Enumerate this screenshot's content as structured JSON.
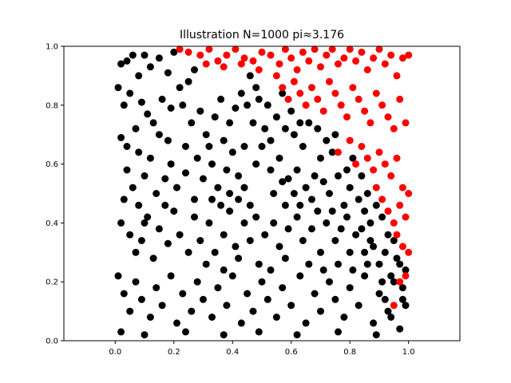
{
  "chart_data": {
    "type": "scatter",
    "title": "Illustration N=1000 pi≈3.176",
    "xlabel": "",
    "ylabel": "",
    "xlim": [
      -0.175,
      1.175
    ],
    "ylim": [
      0.0,
      1.0
    ],
    "x_ticks": [
      "0.0",
      "0.2",
      "0.4",
      "0.6",
      "0.8",
      "1.0"
    ],
    "y_ticks": [
      "0.0",
      "0.2",
      "0.4",
      "0.6",
      "0.8",
      "1.0"
    ],
    "grid": false,
    "legend": "none",
    "n_points": 1000,
    "colors": {
      "inside": "#000000",
      "outside": "#ff0000"
    },
    "series": [
      {
        "points": [
          [
            0.02,
            0.94
          ],
          [
            0.04,
            0.95
          ],
          [
            0.06,
            0.97
          ],
          [
            0.01,
            0.86
          ],
          [
            0.03,
            0.8
          ],
          [
            0.05,
            0.84
          ],
          [
            0.08,
            0.9
          ],
          [
            0.1,
            0.97
          ],
          [
            0.12,
            0.93
          ],
          [
            0.15,
            0.96
          ],
          [
            0.18,
            0.91
          ],
          [
            0.2,
            0.98
          ],
          [
            0.09,
            0.81
          ],
          [
            0.11,
            0.77
          ],
          [
            0.07,
            0.72
          ],
          [
            0.02,
            0.69
          ],
          [
            0.04,
            0.66
          ],
          [
            0.13,
            0.74
          ],
          [
            0.16,
            0.82
          ],
          [
            0.19,
            0.79
          ],
          [
            0.22,
            0.86
          ],
          [
            0.25,
            0.88
          ],
          [
            0.27,
            0.92
          ],
          [
            0.23,
            0.8
          ],
          [
            0.26,
            0.74
          ],
          [
            0.29,
            0.78
          ],
          [
            0.31,
            0.7
          ],
          [
            0.34,
            0.76
          ],
          [
            0.36,
            0.82
          ],
          [
            0.39,
            0.74
          ],
          [
            0.41,
            0.79
          ],
          [
            0.43,
            0.84
          ],
          [
            0.45,
            0.8
          ],
          [
            0.47,
            0.74
          ],
          [
            0.49,
            0.82
          ],
          [
            0.52,
            0.8
          ],
          [
            0.55,
            0.76
          ],
          [
            0.58,
            0.72
          ],
          [
            0.61,
            0.7
          ],
          [
            0.64,
            0.66
          ],
          [
            0.66,
            0.74
          ],
          [
            0.7,
            0.62
          ],
          [
            0.72,
            0.68
          ],
          [
            0.74,
            0.64
          ],
          [
            0.68,
            0.56
          ],
          [
            0.04,
            0.58
          ],
          [
            0.06,
            0.52
          ],
          [
            0.08,
            0.46
          ],
          [
            0.1,
            0.56
          ],
          [
            0.12,
            0.62
          ],
          [
            0.14,
            0.5
          ],
          [
            0.17,
            0.55
          ],
          [
            0.19,
            0.6
          ],
          [
            0.21,
            0.52
          ],
          [
            0.24,
            0.57
          ],
          [
            0.28,
            0.62
          ],
          [
            0.3,
            0.55
          ],
          [
            0.33,
            0.6
          ],
          [
            0.35,
            0.52
          ],
          [
            0.38,
            0.58
          ],
          [
            0.4,
            0.64
          ],
          [
            0.42,
            0.56
          ],
          [
            0.44,
            0.52
          ],
          [
            0.48,
            0.6
          ],
          [
            0.5,
            0.66
          ],
          [
            0.53,
            0.58
          ],
          [
            0.56,
            0.62
          ],
          [
            0.59,
            0.55
          ],
          [
            0.62,
            0.58
          ],
          [
            0.65,
            0.52
          ],
          [
            0.67,
            0.48
          ],
          [
            0.71,
            0.54
          ],
          [
            0.73,
            0.5
          ],
          [
            0.76,
            0.56
          ],
          [
            0.78,
            0.46
          ],
          [
            0.8,
            0.52
          ],
          [
            0.83,
            0.48
          ],
          [
            0.85,
            0.44
          ],
          [
            0.87,
            0.4
          ],
          [
            0.02,
            0.4
          ],
          [
            0.05,
            0.36
          ],
          [
            0.07,
            0.3
          ],
          [
            0.09,
            0.34
          ],
          [
            0.11,
            0.42
          ],
          [
            0.13,
            0.28
          ],
          [
            0.15,
            0.38
          ],
          [
            0.18,
            0.33
          ],
          [
            0.2,
            0.44
          ],
          [
            0.22,
            0.36
          ],
          [
            0.25,
            0.3
          ],
          [
            0.27,
            0.42
          ],
          [
            0.29,
            0.34
          ],
          [
            0.32,
            0.4
          ],
          [
            0.34,
            0.3
          ],
          [
            0.37,
            0.36
          ],
          [
            0.39,
            0.44
          ],
          [
            0.41,
            0.32
          ],
          [
            0.44,
            0.4
          ],
          [
            0.46,
            0.34
          ],
          [
            0.48,
            0.42
          ],
          [
            0.51,
            0.36
          ],
          [
            0.54,
            0.4
          ],
          [
            0.56,
            0.32
          ],
          [
            0.59,
            0.38
          ],
          [
            0.62,
            0.42
          ],
          [
            0.64,
            0.34
          ],
          [
            0.67,
            0.38
          ],
          [
            0.7,
            0.3
          ],
          [
            0.72,
            0.4
          ],
          [
            0.75,
            0.34
          ],
          [
            0.77,
            0.38
          ],
          [
            0.8,
            0.3
          ],
          [
            0.82,
            0.36
          ],
          [
            0.85,
            0.3
          ],
          [
            0.88,
            0.32
          ],
          [
            0.9,
            0.26
          ],
          [
            0.92,
            0.3
          ],
          [
            0.94,
            0.22
          ],
          [
            0.96,
            0.28
          ],
          [
            0.98,
            0.18
          ],
          [
            0.01,
            0.22
          ],
          [
            0.03,
            0.16
          ],
          [
            0.05,
            0.1
          ],
          [
            0.07,
            0.2
          ],
          [
            0.09,
            0.14
          ],
          [
            0.12,
            0.08
          ],
          [
            0.14,
            0.18
          ],
          [
            0.16,
            0.12
          ],
          [
            0.19,
            0.22
          ],
          [
            0.21,
            0.06
          ],
          [
            0.23,
            0.16
          ],
          [
            0.26,
            0.1
          ],
          [
            0.28,
            0.2
          ],
          [
            0.3,
            0.14
          ],
          [
            0.33,
            0.08
          ],
          [
            0.35,
            0.18
          ],
          [
            0.38,
            0.12
          ],
          [
            0.4,
            0.22
          ],
          [
            0.43,
            0.06
          ],
          [
            0.45,
            0.16
          ],
          [
            0.47,
            0.1
          ],
          [
            0.5,
            0.2
          ],
          [
            0.52,
            0.14
          ],
          [
            0.55,
            0.08
          ],
          [
            0.57,
            0.18
          ],
          [
            0.6,
            0.12
          ],
          [
            0.63,
            0.22
          ],
          [
            0.65,
            0.06
          ],
          [
            0.68,
            0.16
          ],
          [
            0.7,
            0.1
          ],
          [
            0.73,
            0.2
          ],
          [
            0.75,
            0.14
          ],
          [
            0.78,
            0.08
          ],
          [
            0.8,
            0.18
          ],
          [
            0.83,
            0.12
          ],
          [
            0.85,
            0.22
          ],
          [
            0.88,
            0.06
          ],
          [
            0.9,
            0.16
          ],
          [
            0.93,
            0.1
          ],
          [
            0.95,
            0.2
          ],
          [
            0.97,
            0.04
          ],
          [
            0.99,
            0.12
          ],
          [
            0.02,
            0.03
          ],
          [
            0.1,
            0.02
          ],
          [
            0.24,
            0.03
          ],
          [
            0.37,
            0.02
          ],
          [
            0.49,
            0.03
          ],
          [
            0.62,
            0.02
          ],
          [
            0.76,
            0.03
          ],
          [
            0.89,
            0.02
          ],
          [
            0.46,
            0.9
          ],
          [
            0.48,
            0.86
          ],
          [
            0.51,
            0.72
          ],
          [
            0.53,
            0.68
          ],
          [
            0.57,
            0.84
          ],
          [
            0.6,
            0.78
          ],
          [
            0.63,
            0.74
          ],
          [
            0.69,
            0.72
          ],
          [
            0.75,
            0.7
          ],
          [
            0.79,
            0.58
          ],
          [
            0.81,
            0.62
          ],
          [
            0.84,
            0.56
          ],
          [
            0.86,
            0.5
          ],
          [
            0.89,
            0.46
          ],
          [
            0.91,
            0.42
          ],
          [
            0.93,
            0.36
          ],
          [
            0.95,
            0.34
          ],
          [
            0.97,
            0.26
          ],
          [
            0.99,
            0.24
          ],
          [
            0.98,
            0.14
          ],
          [
            0.36,
            0.46
          ],
          [
            0.42,
            0.48
          ],
          [
            0.58,
            0.46
          ],
          [
            0.61,
            0.5
          ],
          [
            0.69,
            0.44
          ],
          [
            0.31,
            0.26
          ],
          [
            0.37,
            0.24
          ],
          [
            0.42,
            0.28
          ],
          [
            0.49,
            0.26
          ],
          [
            0.53,
            0.24
          ],
          [
            0.58,
            0.28
          ],
          [
            0.66,
            0.26
          ],
          [
            0.71,
            0.24
          ],
          [
            0.76,
            0.26
          ],
          [
            0.81,
            0.24
          ],
          [
            0.86,
            0.26
          ],
          [
            0.91,
            0.2
          ],
          [
            0.18,
            0.68
          ],
          [
            0.24,
            0.66
          ],
          [
            0.32,
            0.66
          ],
          [
            0.37,
            0.68
          ],
          [
            0.44,
            0.66
          ],
          [
            0.54,
            0.5
          ],
          [
            0.46,
            0.46
          ],
          [
            0.15,
            0.7
          ],
          [
            0.08,
            0.64
          ],
          [
            0.03,
            0.48
          ],
          [
            0.1,
            0.4
          ],
          [
            0.17,
            0.46
          ],
          [
            0.27,
            0.48
          ],
          [
            0.33,
            0.48
          ],
          [
            0.39,
            0.5
          ],
          [
            0.57,
            0.54
          ],
          [
            0.63,
            0.46
          ],
          [
            0.74,
            0.44
          ],
          [
            0.79,
            0.42
          ],
          [
            0.84,
            0.38
          ],
          [
            0.87,
            0.34
          ],
          [
            0.92,
            0.14
          ],
          [
            0.94,
            0.08
          ]
        ]
      },
      {
        "points": [
          [
            0.22,
            0.99
          ],
          [
            0.25,
            0.98
          ],
          [
            0.29,
            0.97
          ],
          [
            0.32,
            0.99
          ],
          [
            0.35,
            0.95
          ],
          [
            0.38,
            0.97
          ],
          [
            0.41,
            0.99
          ],
          [
            0.44,
            0.96
          ],
          [
            0.47,
            0.95
          ],
          [
            0.5,
            0.98
          ],
          [
            0.53,
            0.97
          ],
          [
            0.56,
            0.94
          ],
          [
            0.58,
            0.99
          ],
          [
            0.6,
            0.96
          ],
          [
            0.62,
            0.92
          ],
          [
            0.64,
            0.98
          ],
          [
            0.66,
            0.95
          ],
          [
            0.68,
            0.99
          ],
          [
            0.7,
            0.93
          ],
          [
            0.72,
            0.97
          ],
          [
            0.74,
            0.99
          ],
          [
            0.76,
            0.94
          ],
          [
            0.78,
            0.96
          ],
          [
            0.8,
            0.99
          ],
          [
            0.82,
            0.95
          ],
          [
            0.84,
            0.98
          ],
          [
            0.86,
            0.92
          ],
          [
            0.88,
            0.96
          ],
          [
            0.9,
            0.99
          ],
          [
            0.92,
            0.94
          ],
          [
            0.94,
            0.97
          ],
          [
            0.96,
            0.9
          ],
          [
            0.98,
            0.96
          ],
          [
            1.0,
            0.97
          ],
          [
            0.31,
            0.94
          ],
          [
            0.37,
            0.93
          ],
          [
            0.43,
            0.94
          ],
          [
            0.49,
            0.92
          ],
          [
            0.55,
            0.9
          ],
          [
            0.57,
            0.86
          ],
          [
            0.59,
            0.82
          ],
          [
            0.61,
            0.88
          ],
          [
            0.63,
            0.84
          ],
          [
            0.65,
            0.8
          ],
          [
            0.67,
            0.86
          ],
          [
            0.69,
            0.82
          ],
          [
            0.71,
            0.78
          ],
          [
            0.73,
            0.88
          ],
          [
            0.75,
            0.84
          ],
          [
            0.77,
            0.8
          ],
          [
            0.79,
            0.76
          ],
          [
            0.81,
            0.86
          ],
          [
            0.83,
            0.82
          ],
          [
            0.85,
            0.78
          ],
          [
            0.87,
            0.74
          ],
          [
            0.89,
            0.84
          ],
          [
            0.91,
            0.8
          ],
          [
            0.93,
            0.76
          ],
          [
            0.95,
            0.72
          ],
          [
            0.97,
            0.82
          ],
          [
            0.99,
            0.74
          ],
          [
            0.76,
            0.64
          ],
          [
            0.8,
            0.68
          ],
          [
            0.82,
            0.6
          ],
          [
            0.84,
            0.66
          ],
          [
            0.86,
            0.62
          ],
          [
            0.88,
            0.58
          ],
          [
            0.9,
            0.64
          ],
          [
            0.92,
            0.6
          ],
          [
            0.94,
            0.56
          ],
          [
            0.96,
            0.62
          ],
          [
            0.98,
            0.52
          ],
          [
            1.0,
            0.5
          ],
          [
            0.89,
            0.52
          ],
          [
            0.91,
            0.48
          ],
          [
            0.93,
            0.44
          ],
          [
            0.95,
            0.4
          ],
          [
            0.97,
            0.46
          ],
          [
            0.99,
            0.42
          ],
          [
            0.96,
            0.36
          ],
          [
            0.98,
            0.32
          ],
          [
            1.0,
            0.3
          ],
          [
            0.99,
            0.22
          ],
          [
            0.97,
            0.2
          ],
          [
            0.95,
            0.12
          ]
        ]
      }
    ]
  }
}
